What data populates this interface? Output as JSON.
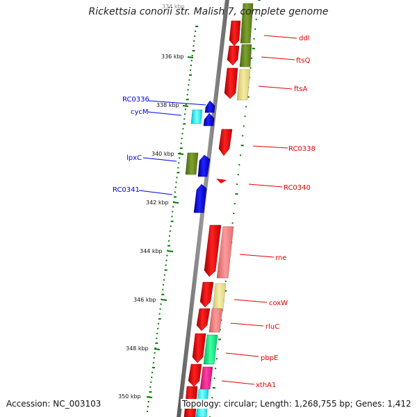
{
  "title": "Rickettsia conorii str. Malish 7, complete genome",
  "footer": {
    "accession": "Accession: NC_003103",
    "topology": "Topology: circular; Length: 1,268,755 bp; Genes: 1,412"
  },
  "kbp_labels": [
    "334 kbp",
    "336 kbp",
    "338 kbp",
    "340 kbp",
    "342 kbp",
    "344 kbp",
    "346 kbp",
    "348 kbp",
    "350 kbp"
  ],
  "genes_right": [
    "ddl",
    "ftsQ",
    "ftsA",
    "RC0338",
    "RC0340",
    "rne",
    "coxW",
    "rluC",
    "pbpE",
    "xthA1"
  ],
  "genes_left": [
    "RC0336",
    "cycM",
    "lpxC",
    "RC0341"
  ],
  "colors": {
    "strand_right": "#ff0000",
    "strand_left": "#0000ff",
    "tick": "#007700",
    "olive": "#6b8e23",
    "khaki": "#f0e68c",
    "salmon": "#f08080",
    "cyan": "#00ffff",
    "spring_green": "#00ff7f",
    "magenta": "#ff1493"
  }
}
